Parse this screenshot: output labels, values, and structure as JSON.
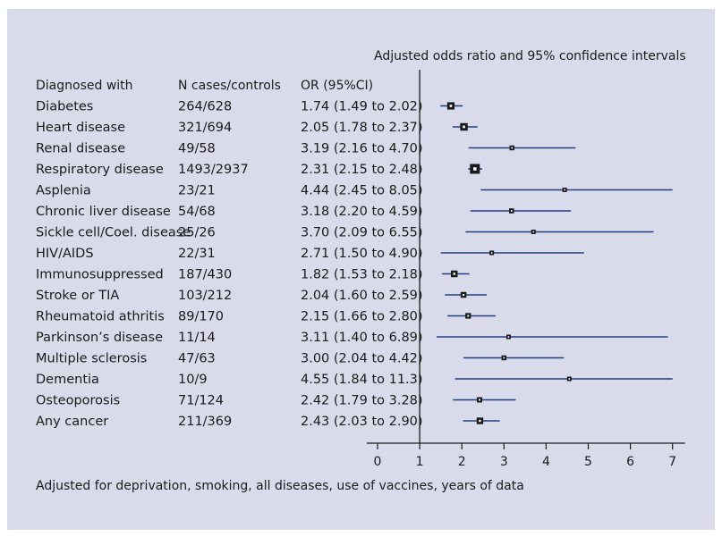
{
  "chart_data": {
    "type": "forest",
    "title": "Adjusted odds ratio and 95% confidence intervals",
    "columns": [
      "Diagnosed with",
      "N cases/controls",
      "OR (95%CI)"
    ],
    "rows": [
      {
        "label": "Diabetes",
        "n": "264/628",
        "ci_text": "1.74 (1.49 to 2.02)",
        "or": 1.74,
        "lo": 1.49,
        "hi": 2.02
      },
      {
        "label": "Heart disease",
        "n": "321/694",
        "ci_text": "2.05 (1.78 to 2.37)",
        "or": 2.05,
        "lo": 1.78,
        "hi": 2.37
      },
      {
        "label": "Renal disease",
        "n": "49/58",
        "ci_text": "3.19 (2.16 to 4.70)",
        "or": 3.19,
        "lo": 2.16,
        "hi": 4.7
      },
      {
        "label": "Respiratory disease",
        "n": "1493/2937",
        "ci_text": "2.31 (2.15 to 2.48)",
        "or": 2.31,
        "lo": 2.15,
        "hi": 2.48
      },
      {
        "label": "Asplenia",
        "n": "23/21",
        "ci_text": "4.44 (2.45 to 8.05)",
        "or": 4.44,
        "lo": 2.45,
        "hi": 8.05
      },
      {
        "label": "Chronic liver disease",
        "n": "54/68",
        "ci_text": "3.18 (2.20 to 4.59)",
        "or": 3.18,
        "lo": 2.2,
        "hi": 4.59
      },
      {
        "label": "Sickle cell/Coel. disease",
        "n": "25/26",
        "ci_text": "3.70 (2.09 to 6.55)",
        "or": 3.7,
        "lo": 2.09,
        "hi": 6.55
      },
      {
        "label": "HIV/AIDS",
        "n": "22/31",
        "ci_text": "2.71 (1.50 to 4.90)",
        "or": 2.71,
        "lo": 1.5,
        "hi": 4.9
      },
      {
        "label": "Immunosuppressed",
        "n": "187/430",
        "ci_text": "1.82 (1.53 to 2.18)",
        "or": 1.82,
        "lo": 1.53,
        "hi": 2.18
      },
      {
        "label": "Stroke or TIA",
        "n": "103/212",
        "ci_text": "2.04 (1.60 to 2.59)",
        "or": 2.04,
        "lo": 1.6,
        "hi": 2.59
      },
      {
        "label": "Rheumatoid athritis",
        "n": "89/170",
        "ci_text": "2.15 (1.66 to 2.80)",
        "or": 2.15,
        "lo": 1.66,
        "hi": 2.8
      },
      {
        "label": "Parkinson’s disease",
        "n": "11/14",
        "ci_text": "3.11 (1.40 to 6.89)",
        "or": 3.11,
        "lo": 1.4,
        "hi": 6.89
      },
      {
        "label": "Multiple sclerosis",
        "n": "47/63",
        "ci_text": "3.00 (2.04 to 4.42)",
        "or": 3.0,
        "lo": 2.04,
        "hi": 4.42
      },
      {
        "label": "Dementia",
        "n": "10/9",
        "ci_text": "4.55 (1.84 to 11.3)",
        "or": 4.55,
        "lo": 1.84,
        "hi": 11.3
      },
      {
        "label": "Osteoporosis",
        "n": "71/124",
        "ci_text": "2.42 (1.79 to 3.28)",
        "or": 2.42,
        "lo": 1.79,
        "hi": 3.28
      },
      {
        "label": "Any cancer",
        "n": "211/369",
        "ci_text": "2.43 (2.03 to 2.90)",
        "or": 2.43,
        "lo": 2.03,
        "hi": 2.9
      }
    ],
    "xlim": [
      0,
      7
    ],
    "xticks": [
      0,
      1,
      2,
      3,
      4,
      5,
      6,
      7
    ],
    "reference_line": 1,
    "footnote": "Adjusted for deprivation, smoking, all diseases, use of vaccines, years of data",
    "colors": {
      "background": "#d9dbeb",
      "ci_line": "#1f3f7f",
      "marker": "#1a1a1a"
    }
  }
}
